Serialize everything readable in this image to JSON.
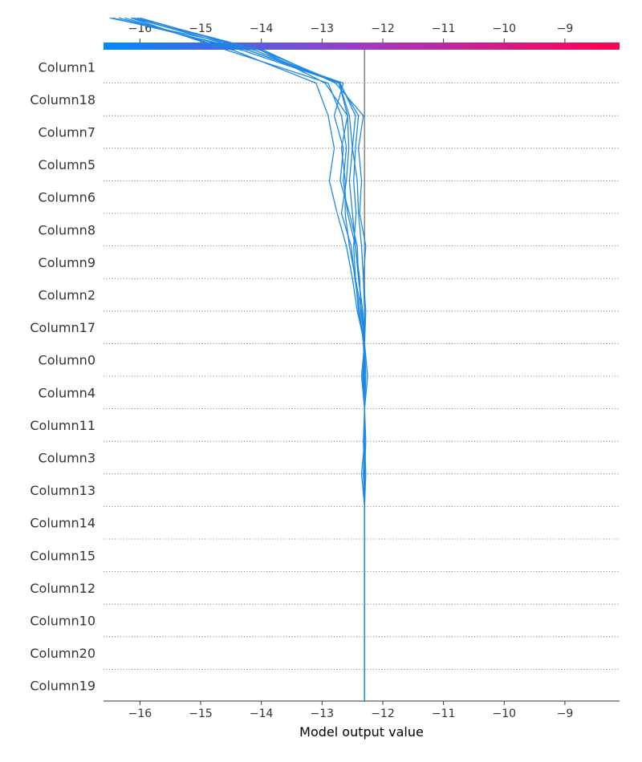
{
  "chart_data": {
    "type": "line",
    "subtype": "decision_plot",
    "title": "",
    "xlabel": "Model output value",
    "ylabel": "",
    "xlim": [
      -16.6,
      -8.1
    ],
    "xticks": [
      -16,
      -15,
      -14,
      -13,
      -12,
      -11,
      -10,
      -9
    ],
    "xtick_labels": [
      "−16",
      "−15",
      "−14",
      "−13",
      "−12",
      "−11",
      "−10",
      "−9"
    ],
    "base_value": -12.3,
    "grid": "dotted horizontal lines between features",
    "colormap": {
      "low": "#008bfb",
      "mid": "#9d3cc1",
      "high": "#ff0051"
    },
    "line_color": "#1e88e5",
    "base_line_color": "#888888",
    "features": [
      "Column1",
      "Column18",
      "Column7",
      "Column5",
      "Column6",
      "Column8",
      "Column9",
      "Column2",
      "Column17",
      "Column0",
      "Column4",
      "Column11",
      "Column3",
      "Column13",
      "Column14",
      "Column15",
      "Column12",
      "Column10",
      "Column20",
      "Column19"
    ],
    "series": [
      {
        "values": [
          -12.3,
          -12.3,
          -12.3,
          -12.3,
          -12.3,
          -12.3,
          -12.3,
          -12.35,
          -12.3,
          -12.3,
          -12.32,
          -12.3,
          -12.28,
          -12.32,
          -12.28,
          -12.38,
          -12.35,
          -12.4,
          -12.32,
          -12.78,
          -13.95,
          -16.5
        ]
      },
      {
        "values": [
          -12.3,
          -12.3,
          -12.3,
          -12.3,
          -12.3,
          -12.3,
          -12.3,
          -12.3,
          -12.32,
          -12.3,
          -12.25,
          -12.3,
          -12.33,
          -12.4,
          -12.42,
          -12.55,
          -12.7,
          -12.65,
          -12.8,
          -12.65,
          -14.2,
          -16.45
        ]
      },
      {
        "values": [
          -12.3,
          -12.3,
          -12.3,
          -12.3,
          -12.3,
          -12.3,
          -12.3,
          -12.3,
          -12.3,
          -12.3,
          -12.33,
          -12.3,
          -12.3,
          -12.32,
          -12.35,
          -12.4,
          -12.42,
          -12.5,
          -12.45,
          -12.7,
          -14.3,
          -16.35
        ]
      },
      {
        "values": [
          -12.3,
          -12.3,
          -12.3,
          -12.3,
          -12.3,
          -12.3,
          -12.3,
          -12.28,
          -12.3,
          -12.3,
          -12.35,
          -12.3,
          -12.42,
          -12.5,
          -12.6,
          -12.75,
          -12.88,
          -12.8,
          -12.9,
          -13.1,
          -14.45,
          -16.25
        ]
      },
      {
        "values": [
          -12.3,
          -12.3,
          -12.3,
          -12.3,
          -12.3,
          -12.3,
          -12.3,
          -12.3,
          -12.3,
          -12.3,
          -12.28,
          -12.3,
          -12.36,
          -12.38,
          -12.45,
          -12.58,
          -12.65,
          -12.6,
          -12.68,
          -12.9,
          -14.55,
          -16.15
        ]
      },
      {
        "values": [
          -12.3,
          -12.3,
          -12.3,
          -12.3,
          -12.3,
          -12.3,
          -12.3,
          -12.32,
          -12.3,
          -12.3,
          -12.3,
          -12.32,
          -12.38,
          -12.46,
          -12.52,
          -12.68,
          -12.6,
          -12.56,
          -12.58,
          -12.95,
          -14.0,
          -16.05
        ]
      },
      {
        "values": [
          -12.3,
          -12.3,
          -12.3,
          -12.3,
          -12.3,
          -12.3,
          -12.3,
          -12.3,
          -12.3,
          -12.3,
          -12.3,
          -12.3,
          -12.33,
          -12.4,
          -12.45,
          -12.5,
          -12.55,
          -12.5,
          -12.55,
          -12.72,
          -14.1,
          -16.0
        ]
      },
      {
        "values": [
          -12.3,
          -12.3,
          -12.3,
          -12.3,
          -12.3,
          -12.3,
          -12.3,
          -12.3,
          -12.28,
          -12.3,
          -12.3,
          -12.3,
          -12.35,
          -12.45,
          -12.48,
          -12.44,
          -12.48,
          -12.45,
          -12.4,
          -12.72,
          -14.2,
          -16.1
        ]
      },
      {
        "values": [
          -12.3,
          -12.3,
          -12.3,
          -12.3,
          -12.3,
          -12.3,
          -12.3,
          -12.3,
          -12.3,
          -12.3,
          -12.3,
          -12.3,
          -12.4,
          -12.45,
          -12.55,
          -12.62,
          -12.62,
          -12.68,
          -12.58,
          -12.72,
          -14.0,
          -16.15
        ]
      }
    ]
  }
}
